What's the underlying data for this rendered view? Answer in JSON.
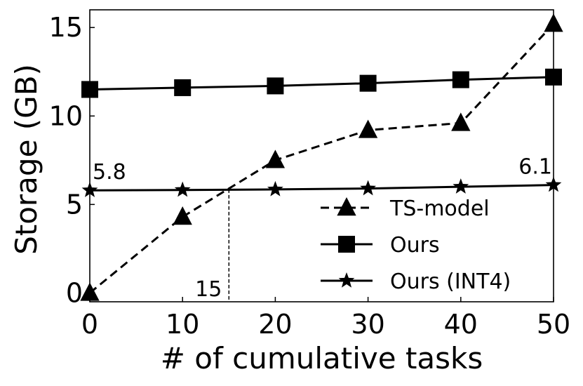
{
  "chart_data": {
    "type": "line",
    "xlabel": "# of cumulative tasks",
    "ylabel": "Storage (GB)",
    "xlim": [
      0,
      50
    ],
    "ylim": [
      -0.5,
      16
    ],
    "xticks": [
      0,
      10,
      20,
      30,
      40,
      50
    ],
    "yticks": [
      0,
      5,
      10,
      15
    ],
    "grid": false,
    "legend_position": "lower-right",
    "x": [
      0,
      10,
      20,
      30,
      40,
      50
    ],
    "series": [
      {
        "name": "TS-model",
        "values": [
          0,
          4.3,
          7.5,
          9.2,
          9.6,
          15.2
        ],
        "marker": "triangle",
        "line": "dashed",
        "color": "#000000"
      },
      {
        "name": "Ours",
        "values": [
          11.5,
          11.6,
          11.7,
          11.85,
          12.05,
          12.2
        ],
        "marker": "square",
        "line": "solid",
        "color": "#000000"
      },
      {
        "name": "Ours (INT4)",
        "values": [
          5.8,
          5.82,
          5.85,
          5.9,
          6.0,
          6.1
        ],
        "marker": "star",
        "line": "solid",
        "color": "#000000"
      }
    ],
    "annotations": [
      {
        "text": "5.8",
        "x": 0,
        "y": 5.8
      },
      {
        "text": "6.1",
        "x": 50,
        "y": 6.1
      },
      {
        "text": "15",
        "x": 15,
        "y": 0
      }
    ],
    "crossover_line": {
      "x": 15,
      "y": 5.85,
      "style": "dashed"
    }
  }
}
